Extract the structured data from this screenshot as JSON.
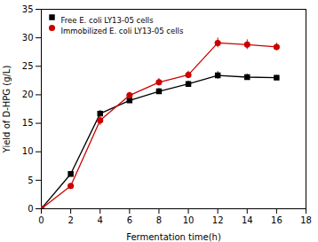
{
  "chart_data": {
    "type": "line",
    "x": [
      0,
      2,
      4,
      6,
      8,
      10,
      12,
      14,
      16
    ],
    "series": [
      {
        "name": "Free E. coli LY13-05 cells",
        "color": "#000000",
        "marker": "square",
        "values": [
          0,
          6.1,
          16.7,
          19.0,
          20.6,
          21.9,
          23.4,
          23.1,
          23.0
        ],
        "yerr": [
          0,
          0.4,
          0.55,
          0.5,
          0.5,
          0.5,
          0.65,
          0.5,
          0.4
        ]
      },
      {
        "name": "Immobilized E. coli LY13-05 cells",
        "color": "#cc0000",
        "marker": "circle",
        "values": [
          0,
          4.0,
          15.5,
          19.9,
          22.2,
          23.5,
          29.1,
          28.8,
          28.4
        ],
        "yerr": [
          0,
          0.3,
          0.85,
          0.55,
          0.65,
          0.65,
          0.85,
          0.85,
          0.65
        ]
      }
    ],
    "xlabel": "Fermentation time(h)",
    "ylabel": "Yield of D-HPG (g/L)",
    "xlim": [
      0,
      18
    ],
    "ylim": [
      0,
      35
    ],
    "xticks": [
      0,
      2,
      4,
      6,
      8,
      10,
      12,
      14,
      16,
      18
    ],
    "yticks": [
      0,
      5,
      10,
      15,
      20,
      25,
      30,
      35
    ],
    "legend": "upper left",
    "grid": false
  }
}
